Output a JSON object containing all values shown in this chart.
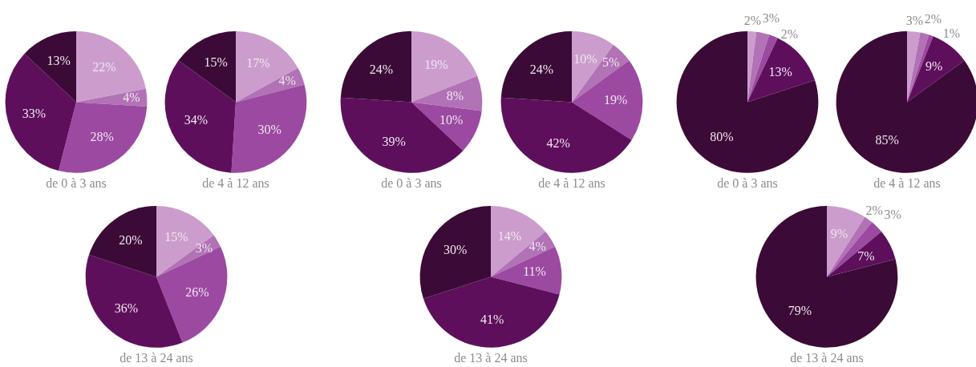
{
  "chart_data": [
    {
      "type": "pie",
      "title": "de 0 à 3 ans",
      "categories": [
        null,
        null,
        null,
        null,
        null
      ],
      "values": [
        22,
        4,
        28,
        33,
        13
      ],
      "value_labels": [
        "22%",
        "4%",
        "28%",
        "33%",
        "13%"
      ],
      "colors": [
        "#cc9dcc",
        "#b272b6",
        "#9c49a1",
        "#5e0f5c",
        "#3c0a37"
      ]
    },
    {
      "type": "pie",
      "title": "de 4 à 12 ans",
      "categories": [
        null,
        null,
        null,
        null,
        null
      ],
      "values": [
        17,
        4,
        30,
        34,
        15
      ],
      "value_labels": [
        "17%",
        "4%",
        "30%",
        "34%",
        "15%"
      ],
      "colors": [
        "#cc9dcc",
        "#b272b6",
        "#9c49a1",
        "#5e0f5c",
        "#3c0a37"
      ]
    },
    {
      "type": "pie",
      "title": "de 0 à 3 ans",
      "categories": [
        null,
        null,
        null,
        null,
        null
      ],
      "values": [
        19,
        8,
        10,
        39,
        24
      ],
      "value_labels": [
        "19%",
        "8%",
        "10%",
        "39%",
        "24%"
      ],
      "colors": [
        "#cc9dcc",
        "#b272b6",
        "#9c49a1",
        "#5e0f5c",
        "#3c0a37"
      ]
    },
    {
      "type": "pie",
      "title": "de 4 à 12 ans",
      "categories": [
        null,
        null,
        null,
        null,
        null
      ],
      "values": [
        10,
        5,
        19,
        42,
        24
      ],
      "value_labels": [
        "10%",
        "5%",
        "19%",
        "42%",
        "24%"
      ],
      "colors": [
        "#cc9dcc",
        "#b272b6",
        "#9c49a1",
        "#5e0f5c",
        "#3c0a37"
      ]
    },
    {
      "type": "pie",
      "title": "de 0 à 3 ans",
      "categories": [
        null,
        null,
        null,
        null,
        null
      ],
      "values": [
        2,
        3,
        2,
        13,
        80
      ],
      "value_labels": [
        "2%",
        "3%",
        "2%",
        "13%",
        "80%"
      ],
      "colors": [
        "#cc9dcc",
        "#b272b6",
        "#9c49a1",
        "#5e0f5c",
        "#3c0a37"
      ]
    },
    {
      "type": "pie",
      "title": "de 4 à 12 ans",
      "categories": [
        null,
        null,
        null,
        null,
        null
      ],
      "values": [
        3,
        2,
        1,
        9,
        85
      ],
      "value_labels": [
        "3%",
        "2%",
        "1%",
        "9%",
        "85%"
      ],
      "colors": [
        "#cc9dcc",
        "#b272b6",
        "#9c49a1",
        "#5e0f5c",
        "#3c0a37"
      ]
    },
    {
      "type": "pie",
      "title": "de 13 à 24 ans",
      "categories": [
        null,
        null,
        null,
        null,
        null
      ],
      "values": [
        15,
        3,
        26,
        36,
        20
      ],
      "value_labels": [
        "15%",
        "3%",
        "26%",
        "36%",
        "20%"
      ],
      "colors": [
        "#cc9dcc",
        "#b272b6",
        "#9c49a1",
        "#5e0f5c",
        "#3c0a37"
      ]
    },
    {
      "type": "pie",
      "title": "de 13 à 24 ans",
      "categories": [
        null,
        null,
        null,
        null,
        null
      ],
      "values": [
        14,
        4,
        11,
        41,
        30
      ],
      "value_labels": [
        "14%",
        "4%",
        "11%",
        "41%",
        "30%"
      ],
      "colors": [
        "#cc9dcc",
        "#b272b6",
        "#9c49a1",
        "#5e0f5c",
        "#3c0a37"
      ]
    },
    {
      "type": "pie",
      "title": "de 13 à 24 ans",
      "categories": [
        null,
        null,
        null,
        null,
        null
      ],
      "values": [
        9,
        2,
        3,
        7,
        79
      ],
      "value_labels": [
        "9%",
        "2%",
        "3%",
        "7%",
        "79%"
      ],
      "colors": [
        "#cc9dcc",
        "#b272b6",
        "#9c49a1",
        "#5e0f5c",
        "#3c0a37"
      ]
    }
  ]
}
